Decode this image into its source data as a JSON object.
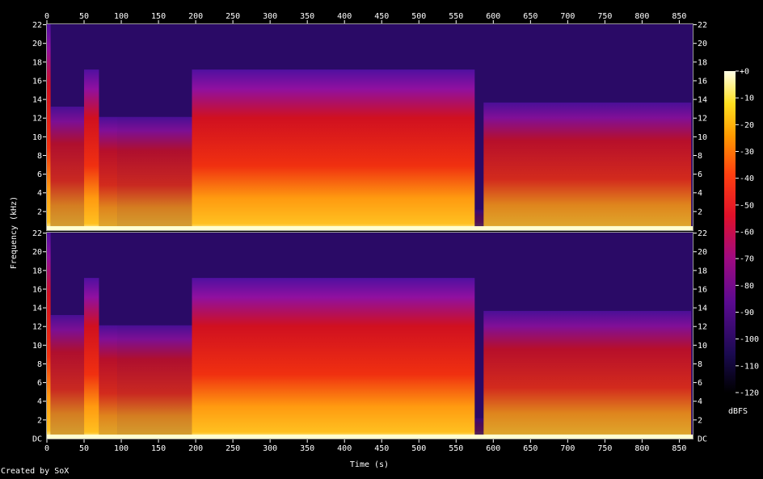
{
  "chart_data": {
    "type": "heatmap",
    "title": "",
    "xlabel": "Time (s)",
    "ylabel": "Frequency (kHz)",
    "xlim": [
      0,
      868
    ],
    "ylim": [
      0,
      22.05
    ],
    "x_ticks": [
      0,
      50,
      100,
      150,
      200,
      250,
      300,
      350,
      400,
      450,
      500,
      550,
      600,
      650,
      700,
      750,
      800,
      850
    ],
    "y_ticks": [
      2,
      4,
      6,
      8,
      10,
      12,
      14,
      16,
      18,
      20,
      22
    ],
    "y_tick_bottom_label": "DC",
    "channels": 2,
    "colorbar": {
      "label": "dBFS",
      "ticks": [
        "+0",
        "-10",
        "-20",
        "-30",
        "-40",
        "-50",
        "-60",
        "-70",
        "-80",
        "-90",
        "-100",
        "-110",
        "-120"
      ],
      "range": [
        -120,
        0
      ]
    },
    "segments": [
      {
        "start": 0,
        "end": 5,
        "level": "very loud"
      },
      {
        "start": 5,
        "end": 50,
        "level": "moderate, intermittent"
      },
      {
        "start": 50,
        "end": 70,
        "level": "loud"
      },
      {
        "start": 70,
        "end": 95,
        "level": "moderate"
      },
      {
        "start": 95,
        "end": 195,
        "level": "intermittent bursts"
      },
      {
        "start": 195,
        "end": 575,
        "level": "loud, steady"
      },
      {
        "start": 575,
        "end": 587,
        "level": "fade / near silence"
      },
      {
        "start": 587,
        "end": 866,
        "level": "moderate, steady"
      }
    ],
    "colors": {
      "background": "#000000",
      "text": "#ffffff",
      "frame": "#9a9a9a",
      "credit_text": "#ffffff"
    }
  },
  "credit": "Created by SoX"
}
